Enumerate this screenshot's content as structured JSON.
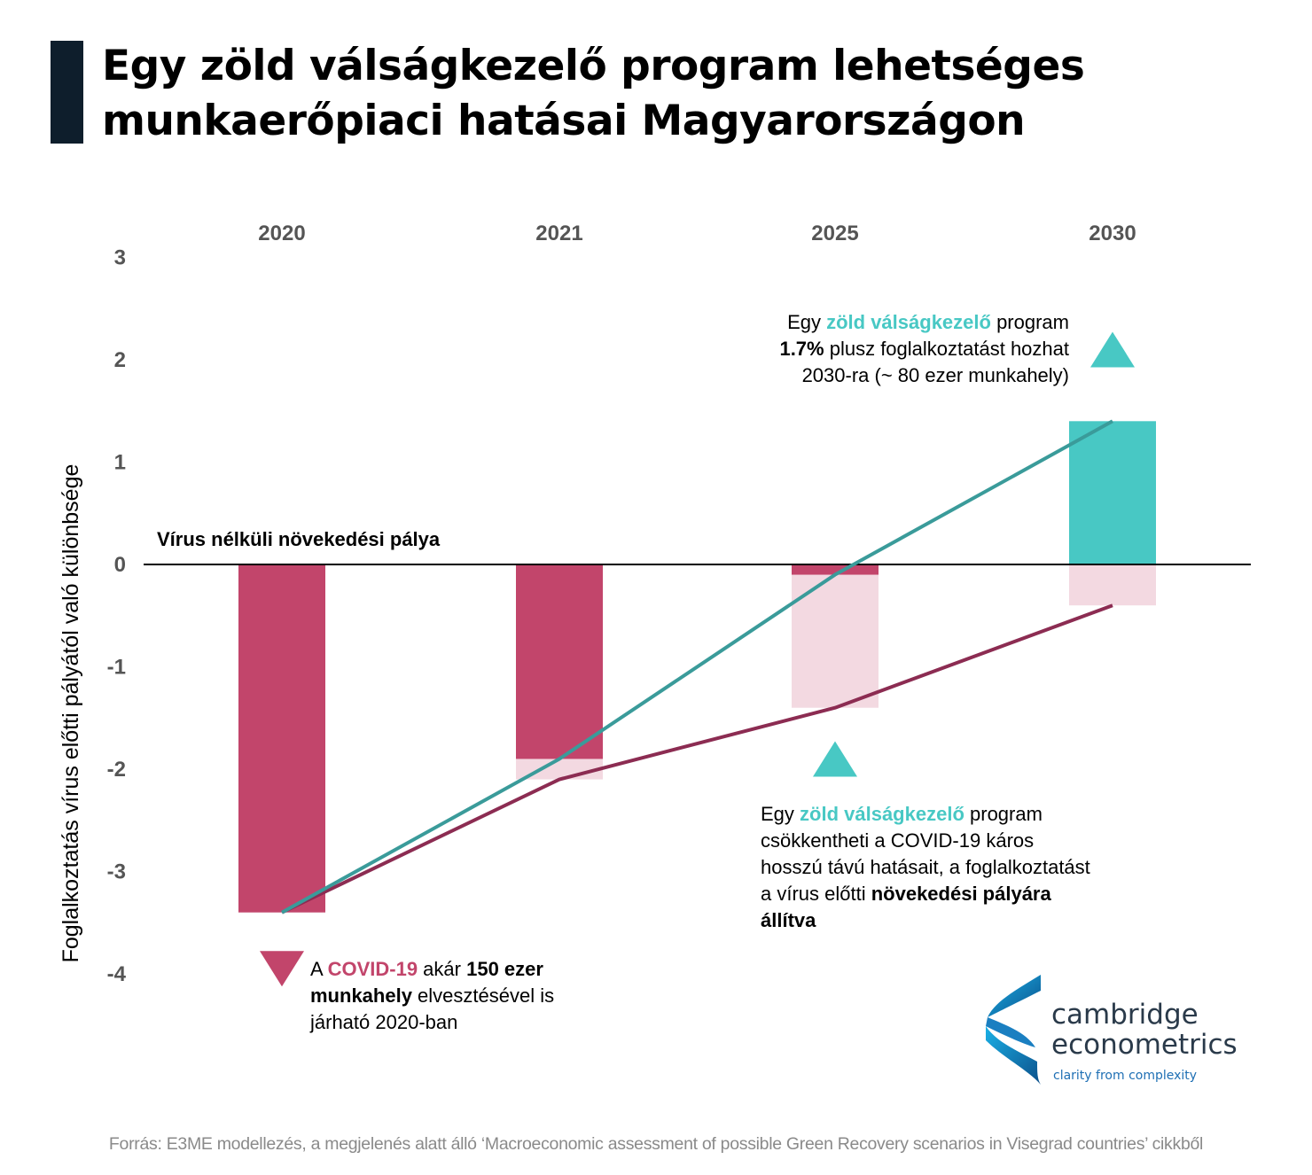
{
  "title": {
    "line1": "Egy zöld válságkezelő program lehetséges",
    "line2": "munkaerőpiaci hatásai Magyarországon"
  },
  "chart_data": {
    "type": "bar",
    "categories": [
      "2020",
      "2021",
      "2025",
      "2030"
    ],
    "ylabel": "Foglalkoztatás vírus előtti pályától való különbsége",
    "ylim": [
      -4,
      3
    ],
    "yticks": [
      "3",
      "2",
      "1",
      "0",
      "-1",
      "-2",
      "-3",
      "-4"
    ],
    "baseline_label": "Vírus nélküli növekedési pálya",
    "series": [
      {
        "kind": "bar",
        "values": [
          -3.4,
          -1.9,
          -0.1,
          1.4
        ],
        "color": "#c2456b",
        "color_positive": "#48c8c4"
      },
      {
        "kind": "bar_extension",
        "values": [
          0,
          -2.1,
          -1.4,
          -0.4
        ],
        "color": "#f3d9e1"
      },
      {
        "kind": "line",
        "values": [
          -3.4,
          -1.9,
          -0.1,
          1.4
        ],
        "color": "#3a9b9a"
      },
      {
        "kind": "line",
        "values": [
          -3.4,
          -2.1,
          -1.4,
          -0.4
        ],
        "color": "#8c2c52"
      }
    ],
    "markers": [
      {
        "shape": "triangle-up",
        "color": "#48c8c4",
        "category": "2030",
        "value": 2.1
      },
      {
        "shape": "triangle-up",
        "color": "#48c8c4",
        "category": "2025",
        "value": -1.9
      },
      {
        "shape": "triangle-down",
        "color": "#c2456b",
        "category": "2020",
        "value": -3.95
      }
    ],
    "grid": false
  },
  "notes": {
    "top": {
      "l1a": "Egy ",
      "l1b": "zöld válságkezelő",
      "l1c": " program",
      "l2a": "1.7%",
      "l2b": " plusz foglalkoztatást hozhat",
      "l3": "2030-ra (~ 80 ezer munkahely)"
    },
    "mid": {
      "l1a": "Egy ",
      "l1b": "zöld válságkezelő",
      "l1c": " program",
      "l2": "csökkentheti a COVID-19 káros",
      "l3": "hosszú távú hatásait, a foglalkoztatást",
      "l4a": "a vírus előtti ",
      "l4b": "növekedési pályára",
      "l5": "állítva"
    },
    "low": {
      "l1a": "A ",
      "l1b": "COVID-19",
      "l1c": " akár ",
      "l1d": "150 ezer",
      "l2a": "munkahely",
      "l2b": " elvesztésével is",
      "l3": "járható 2020-ban"
    }
  },
  "logo": {
    "line1": "cambridge",
    "line2": "econometrics",
    "tagline": "clarity from complexity"
  },
  "source": "Forrás: E3ME modellezés, a megjelenés alatt álló ‘Macroeconomic assessment of possible Green Recovery scenarios in Visegrad countries’ cikkből"
}
